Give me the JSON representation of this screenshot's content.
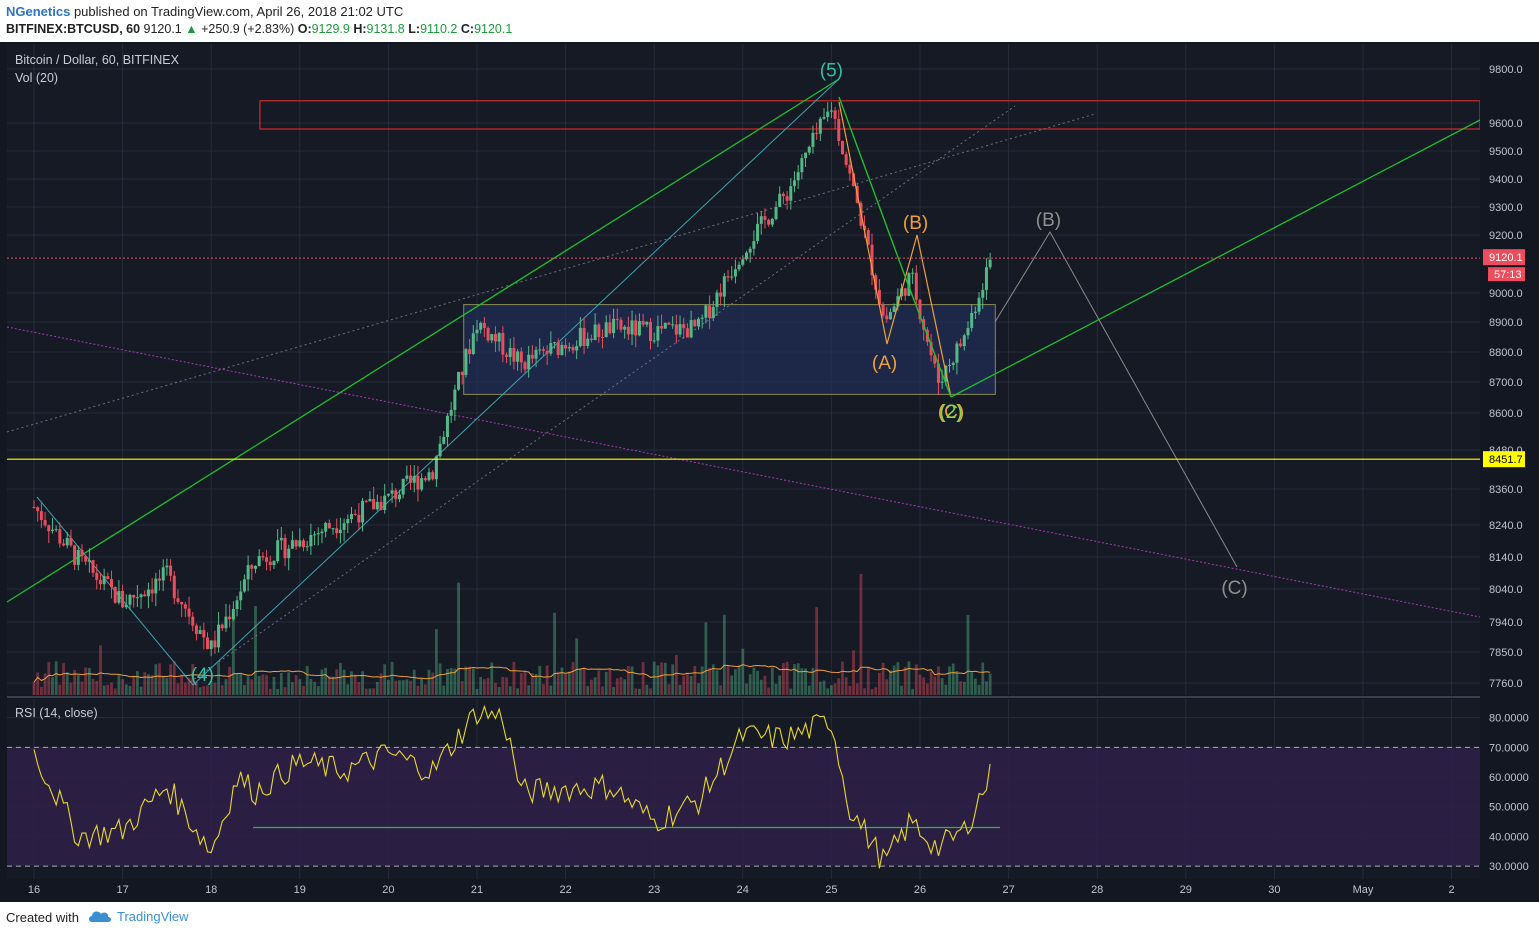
{
  "header": {
    "author": "NGenetics",
    "published": "published on TradingView.com, April 26, 2018 21:02 UTC",
    "symbol": "BITFINEX:BTCUSD, 60",
    "last": "9120.1",
    "up_arrow": "▲",
    "change": "+250.9 (+2.83%)",
    "o_label": "O:",
    "o_val": "9129.9",
    "h_label": "H:",
    "h_val": "9131.8",
    "l_label": "L:",
    "l_val": "9110.2",
    "c_label": "C:",
    "c_val": "9120.1"
  },
  "pane_main": {
    "title": "Bitcoin / Dollar, 60, BITFINEX",
    "vol_label": "Vol (20)"
  },
  "pane_rsi": {
    "title": "RSI (14, close)"
  },
  "footer": {
    "created": "Created with",
    "brand": "TradingView"
  },
  "colors": {
    "background": "#161a25",
    "grid": "#262b3a",
    "up": "#53b987",
    "down": "#eb4d5c",
    "green_line": "#1fbf2d",
    "orange": "#f0a037",
    "yellow": "#ffff00",
    "magenta": "#a63ab4",
    "rsi_line": "#e8d92a",
    "rsi_band": "#2d1f47",
    "red_zone": "#d02a2a"
  },
  "chart_data": [
    {
      "type": "candlestick",
      "title": "Bitcoin / Dollar, 60, BITFINEX",
      "y_ticks": [
        "9800.0",
        "9600.0",
        "9500.0",
        "9400.0",
        "9300.0",
        "9200.0",
        "9000.0",
        "8900.0",
        "8800.0",
        "8700.0",
        "8600.0",
        "8480.0",
        "8360.0",
        "8240.0",
        "8140.0",
        "8040.0",
        "7940.0",
        "7850.0",
        "7760.0"
      ],
      "x_ticks": [
        "16",
        "17",
        "18",
        "19",
        "20",
        "21",
        "22",
        "23",
        "24",
        "25",
        "26",
        "27",
        "28",
        "29",
        "30",
        "May",
        "2"
      ],
      "price_tags": [
        {
          "label": "last_price",
          "value": "9120.1",
          "time": "57:13",
          "color": "#eb4d5c"
        },
        {
          "label": "horizontal_level",
          "value": "8451.7",
          "color": "#ffff00"
        }
      ],
      "close_path": [
        [
          "16",
          8300
        ],
        [
          "16.5",
          8130
        ],
        [
          "17",
          8000
        ],
        [
          "17.5",
          8080
        ],
        [
          "18",
          7860
        ],
        [
          "18.5",
          8130
        ],
        [
          "19",
          8190
        ],
        [
          "19.5",
          8260
        ],
        [
          "20",
          8330
        ],
        [
          "20.5",
          8420
        ],
        [
          "21",
          8900
        ],
        [
          "21.5",
          8760
        ],
        [
          "22",
          8830
        ],
        [
          "22.5",
          8880
        ],
        [
          "23",
          8870
        ],
        [
          "23.5",
          8880
        ],
        [
          "24",
          9150
        ],
        [
          "24.5",
          9350
        ],
        [
          "25",
          9660
        ],
        [
          "25.3",
          9300
        ],
        [
          "25.6",
          8900
        ],
        [
          "25.9",
          9060
        ],
        [
          "26.2",
          8700
        ],
        [
          "26.5",
          8850
        ],
        [
          "26.8",
          9120
        ]
      ],
      "wave_labels": [
        {
          "label": "(5)",
          "color": "#2ec3a0",
          "x": "25",
          "y": 9790
        },
        {
          "label": "(4)",
          "color": "#2ec3a0",
          "x": "17.9",
          "y": 7740
        },
        {
          "label": "(A)",
          "color": "#f0a037",
          "x": "25.6",
          "y": 8760
        },
        {
          "label": "(B)",
          "color": "#f0a037",
          "x": "25.95",
          "y": 9240
        },
        {
          "label": "(C)",
          "color": "#f0a037",
          "x": "26.35",
          "y": 8600
        },
        {
          "label": "(2)",
          "color": "#7de04a",
          "x": "26.35",
          "y": 8600
        },
        {
          "label": "(B)",
          "color": "#8f8f8f",
          "x": "27.45",
          "y": 9250
        },
        {
          "label": "(C)",
          "color": "#8f8f8f",
          "x": "29.55",
          "y": 8040
        }
      ],
      "consolidation_range": {
        "x_start": "20.85",
        "x_end": "26.85",
        "y_low": 8660,
        "y_high": 8960
      },
      "resistance_zone": {
        "x_start": "18.55",
        "y_low": 9600,
        "y_high": 9660
      },
      "horizontal_level": 8451.7
    },
    {
      "type": "bar",
      "title": "Vol (20)",
      "note": "volume histogram with 20-period moving average"
    },
    {
      "type": "line",
      "title": "RSI (14, close)",
      "y_ticks": [
        "80.0000",
        "70.0000",
        "60.0000",
        "50.0000",
        "40.0000",
        "30.0000"
      ],
      "bands": [
        30,
        70
      ],
      "support_level": 43,
      "values": [
        [
          "16",
          68
        ],
        [
          "16.5",
          40
        ],
        [
          "17",
          42
        ],
        [
          "17.5",
          57
        ],
        [
          "18",
          35
        ],
        [
          "18.3",
          60
        ],
        [
          "18.5",
          55
        ],
        [
          "19",
          65
        ],
        [
          "19.5",
          62
        ],
        [
          "20",
          68
        ],
        [
          "20.5",
          62
        ],
        [
          "21",
          82
        ],
        [
          "21.3",
          80
        ],
        [
          "21.5",
          55
        ],
        [
          "22",
          56
        ],
        [
          "22.5",
          57
        ],
        [
          "23",
          45
        ],
        [
          "23.5",
          52
        ],
        [
          "24",
          74
        ],
        [
          "24.5",
          73
        ],
        [
          "25",
          79
        ],
        [
          "25.2",
          50
        ],
        [
          "25.6",
          31
        ],
        [
          "25.9",
          45
        ],
        [
          "26.2",
          36
        ],
        [
          "26.5",
          42
        ],
        [
          "26.8",
          61
        ]
      ]
    }
  ]
}
